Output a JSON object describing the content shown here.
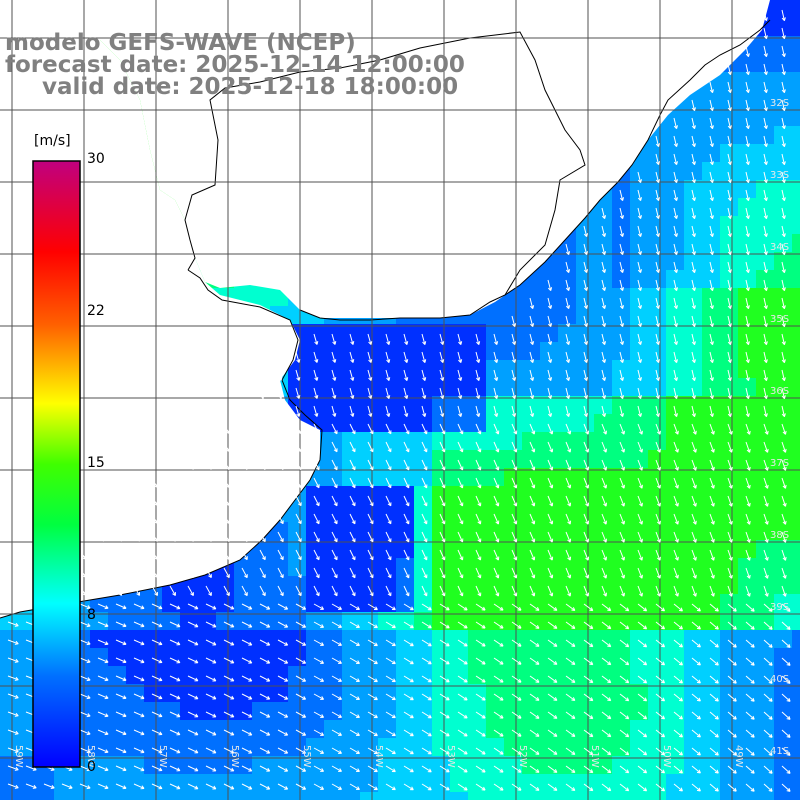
{
  "header": {
    "model": "modelo GEFS-WAVE (NCEP)",
    "forecast": "forecast date: 2025-12-14 12:00:00",
    "valid": "valid date: 2025-12-18 18:00:00"
  },
  "colorbar": {
    "unit": "[m/s]",
    "ticks": [
      "30",
      "22",
      "15",
      "8",
      "0"
    ],
    "tick_values": [
      30,
      22,
      15,
      8,
      0
    ],
    "min": 0,
    "max": 30,
    "colors": [
      "#0000ff",
      "#00c0ff",
      "#00ffff",
      "#00ff00",
      "#ffff00",
      "#ff8000",
      "#ff0000",
      "#c00080"
    ]
  },
  "map": {
    "land_color": "#ffffff",
    "grid_color": "#505050",
    "coast_color": "#000000",
    "arrow_color": "#ffffff",
    "lat_labels": [
      "32S",
      "33S",
      "34S",
      "35S",
      "36S",
      "37S",
      "38S",
      "39S",
      "40S",
      "41S"
    ],
    "lon_labels": [
      "59W",
      "58W",
      "57W",
      "56W",
      "55W",
      "54W",
      "53W",
      "52W",
      "51W",
      "50W",
      "49W"
    ]
  }
}
